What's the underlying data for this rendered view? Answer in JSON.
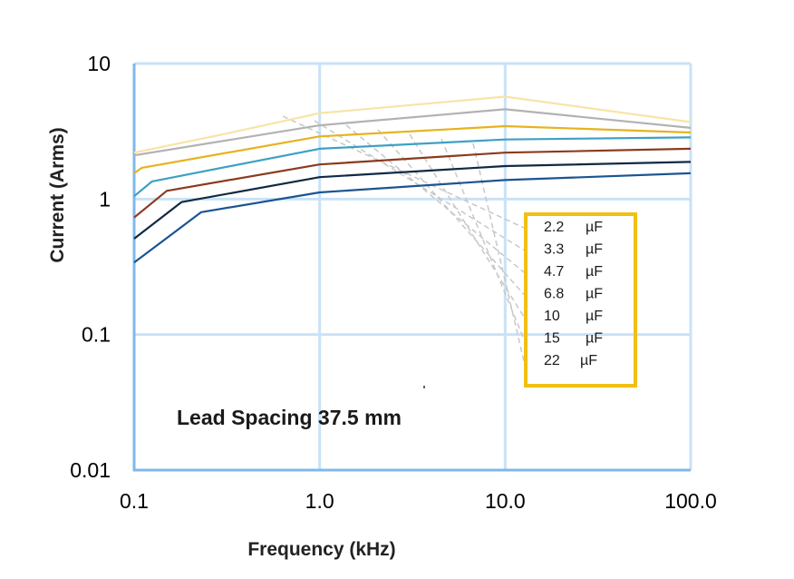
{
  "chart_data": {
    "type": "line",
    "title": "",
    "xlabel": "Frequency (kHz)",
    "ylabel": "Current (Arms)",
    "xscale": "log",
    "yscale": "log",
    "xlim": [
      0.1,
      100
    ],
    "ylim": [
      0.01,
      10
    ],
    "x_ticks": [
      0.1,
      1,
      10,
      100
    ],
    "x_tick_labels": [
      "0.1",
      "1.0",
      "10.0",
      "100.0"
    ],
    "y_ticks": [
      0.01,
      0.1,
      1,
      10
    ],
    "y_tick_labels": [
      "0.01",
      "0.1",
      "1",
      "10"
    ],
    "grid": true,
    "annotation": "Lead Spacing 37.5 mm",
    "legend_position": "center-right",
    "colors": {
      "grid": "#c9e2f7",
      "axis": "#7fb8ea",
      "legend_border": "#f2bf14",
      "leader": "#c8c8c8"
    },
    "series": [
      {
        "name": "2.2",
        "unit": "µF",
        "color": "#f7e4a6",
        "x": [
          0.1,
          0.3,
          1,
          10,
          100
        ],
        "y": [
          2.2,
          3.0,
          4.3,
          5.7,
          3.7
        ]
      },
      {
        "name": "3.3",
        "unit": "µF",
        "color": "#b2b2b2",
        "x": [
          0.1,
          1,
          10,
          100
        ],
        "y": [
          2.1,
          3.5,
          4.6,
          3.35
        ]
      },
      {
        "name": "4.7",
        "unit": "µF",
        "color": "#e6b31e",
        "x": [
          0.1,
          0.11,
          1,
          10,
          100
        ],
        "y": [
          1.55,
          1.7,
          2.9,
          3.45,
          3.1
        ]
      },
      {
        "name": "6.8",
        "unit": "µF",
        "color": "#3ea0c4",
        "x": [
          0.1,
          0.125,
          1,
          10,
          100
        ],
        "y": [
          1.05,
          1.35,
          2.35,
          2.75,
          2.85
        ]
      },
      {
        "name": "10",
        "unit": "µF",
        "color": "#8b3a1e",
        "x": [
          0.1,
          0.15,
          1,
          10,
          100
        ],
        "y": [
          0.73,
          1.15,
          1.8,
          2.2,
          2.35
        ]
      },
      {
        "name": "15",
        "unit": "µF",
        "color": "#102a44",
        "x": [
          0.1,
          0.18,
          1,
          10,
          100
        ],
        "y": [
          0.51,
          0.95,
          1.45,
          1.75,
          1.88
        ]
      },
      {
        "name": "22",
        "unit": "µF",
        "color": "#1b5592",
        "x": [
          0.1,
          0.23,
          1,
          10,
          100
        ],
        "y": [
          0.34,
          0.8,
          1.12,
          1.38,
          1.55
        ]
      }
    ]
  }
}
